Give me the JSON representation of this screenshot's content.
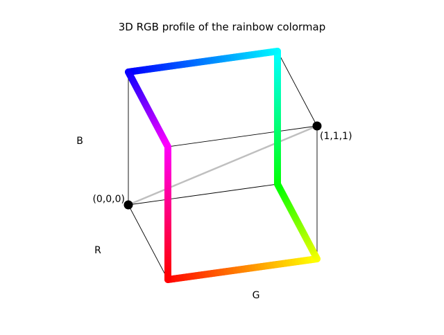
{
  "chart_data": {
    "type": "line",
    "title": "3D RGB profile of the rainbow colormap",
    "axis_labels": {
      "r": "R",
      "g": "G",
      "b": "B"
    },
    "corner_labels": {
      "origin": "(0,0,0)",
      "white": "(1,1,1)"
    },
    "diagonal_color": "#bfbfbf",
    "marker_color": "#000000",
    "series": [
      {
        "points": [
          {
            "r": 1,
            "g": 0,
            "b": 0
          },
          {
            "r": 1,
            "g": 1,
            "b": 0
          },
          {
            "r": 0,
            "g": 1,
            "b": 0
          },
          {
            "r": 0,
            "g": 1,
            "b": 1
          },
          {
            "r": 0,
            "g": 0,
            "b": 1
          },
          {
            "r": 1,
            "g": 0,
            "b": 1
          },
          {
            "r": 1,
            "g": 0,
            "b": 0
          }
        ]
      }
    ]
  }
}
